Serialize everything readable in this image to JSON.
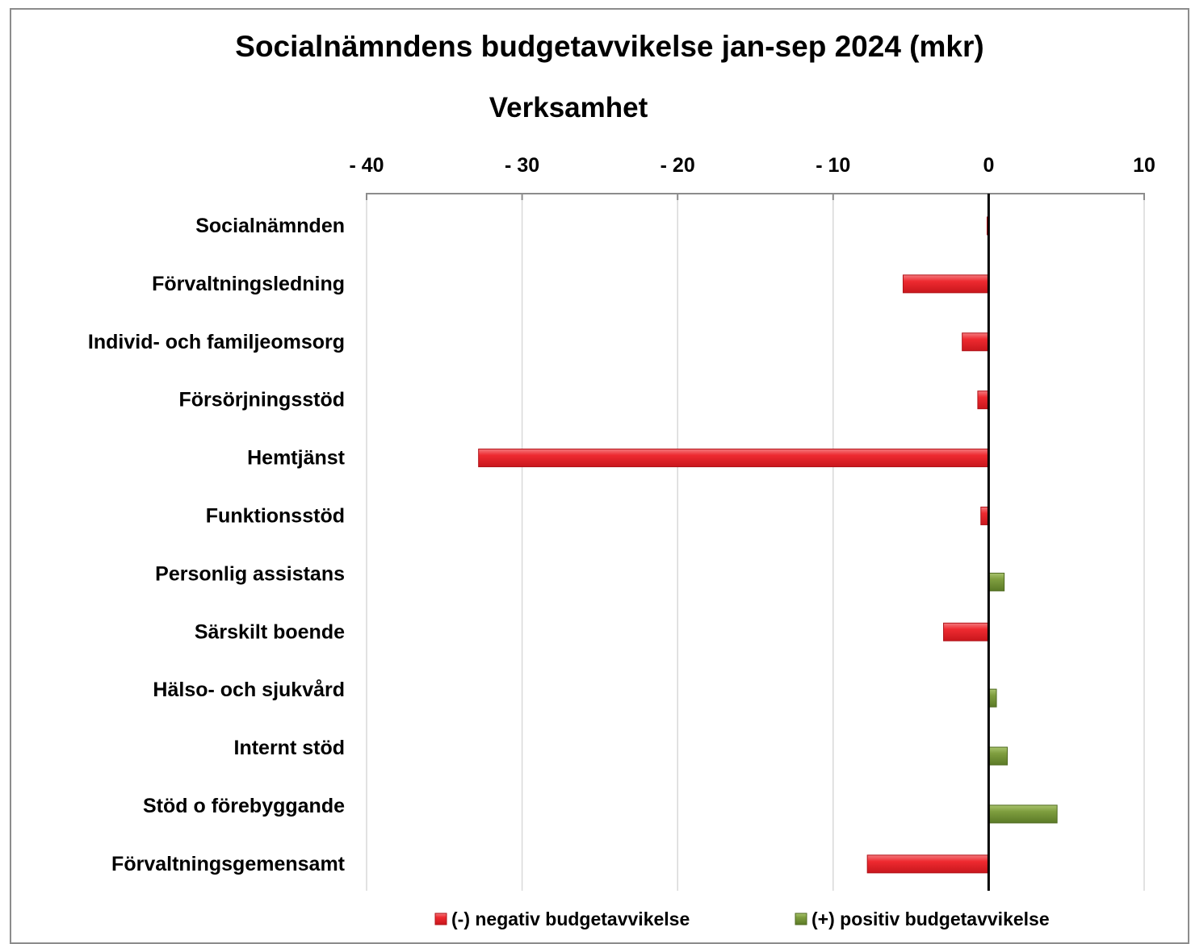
{
  "chart_data": {
    "type": "bar",
    "orientation": "horizontal",
    "title": "Socialnämndens budgetavvikelse jan-sep 2024 (mkr)",
    "subtitle": "Verksamhet",
    "categories": [
      "Socialnämnden",
      "Förvaltningsledning",
      "Individ- och familjeomsorg",
      "Försörjningsstöd",
      "Hemtjänst",
      "Funktionsstöd",
      "Personlig assistans",
      "Särskilt boende",
      "Hälso- och sjukvård",
      "Internt stöd",
      "Stöd o förebyggande",
      "Förvaltningsgemensamt"
    ],
    "series": [
      {
        "name": "(-) negativ budgetavvikelse",
        "color": "#e8242b",
        "values": [
          -0.1,
          -5.5,
          -1.7,
          -0.7,
          -32.8,
          -0.5,
          null,
          -2.9,
          null,
          null,
          null,
          -7.8
        ]
      },
      {
        "name": "(+) positiv budgetavvikelse",
        "color": "#77933c",
        "values": [
          null,
          null,
          null,
          null,
          null,
          null,
          1.0,
          null,
          0.5,
          1.2,
          4.4,
          null
        ]
      }
    ],
    "xlim": [
      -40,
      10
    ],
    "xticks": [
      -40,
      -30,
      -20,
      -10,
      0,
      10
    ],
    "xtick_labels": [
      "- 40",
      "- 30",
      "- 20",
      "- 10",
      "0",
      "10"
    ],
    "axis_position": "top",
    "grid": true,
    "legend_position": "bottom"
  }
}
